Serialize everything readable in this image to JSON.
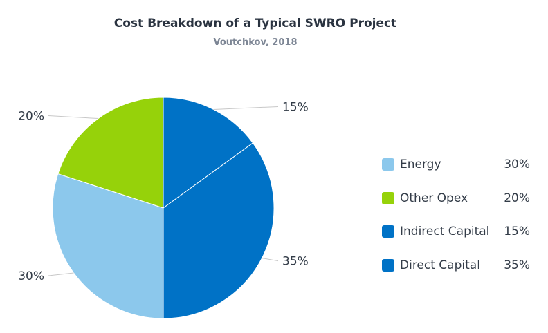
{
  "chart_data": {
    "type": "pie",
    "title": "Cost Breakdown of a Typical SWRO Project",
    "subtitle": "Voutchkov, 2018",
    "categories": [
      "Energy",
      "Other Opex",
      "Indirect Capital",
      "Direct Capital"
    ],
    "values": [
      30,
      20,
      15,
      35
    ],
    "labels": [
      "30%",
      "20%",
      "15%",
      "35%"
    ],
    "colors": [
      "#8cc8ec",
      "#96d20a",
      "#0072c6",
      "#0072c6"
    ],
    "legend_position": "right"
  }
}
